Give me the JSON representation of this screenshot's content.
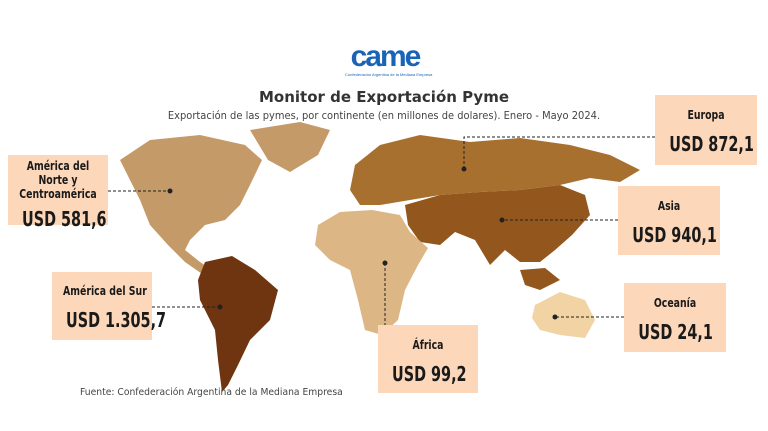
{
  "logo": {
    "text": "came",
    "tagline": "Confederación Argentina de la Mediana Empresa"
  },
  "title": "Monitor de Exportación Pyme",
  "subtitle": "Exportación de las pymes, por continente (en millones de dolares). Enero - Mayo 2024.",
  "regions": [
    {
      "name": "América del Norte y Centroamérica",
      "value": "USD 581,6",
      "amount_musd": 581.6,
      "color": "#c49a68"
    },
    {
      "name": "América del Sur",
      "value": "USD 1.305,7",
      "amount_musd": 1305.7,
      "color": "#6f3410"
    },
    {
      "name": "Europa",
      "value": "USD 872,1",
      "amount_musd": 872.1,
      "color": "#a8702f"
    },
    {
      "name": "Asia",
      "value": "USD 940,1",
      "amount_musd": 940.1,
      "color": "#93561c"
    },
    {
      "name": "África",
      "value": "USD 99,2",
      "amount_musd": 99.2,
      "color": "#dcb685"
    },
    {
      "name": "Oceanía",
      "value": "USD 24,1",
      "amount_musd": 24.1,
      "color": "#f1d3a4"
    }
  ],
  "label_background": "#fdd7b9",
  "source": "Fuente: Confederación Argentina de la Mediana Empresa"
}
